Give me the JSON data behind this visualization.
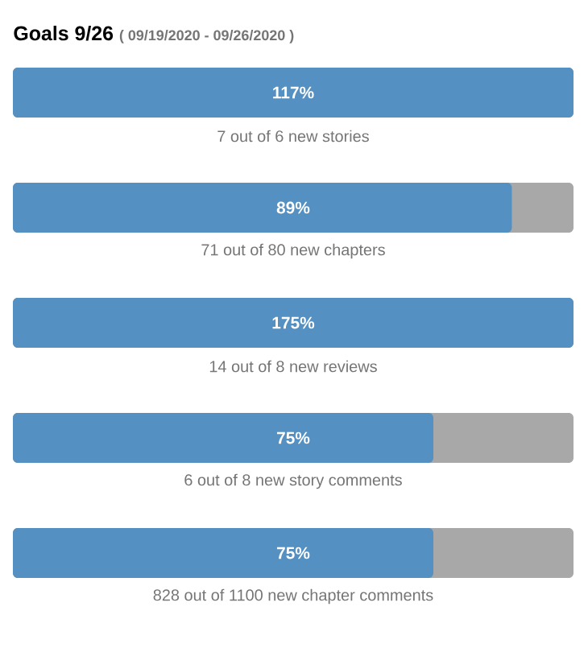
{
  "chart_data": {
    "type": "other",
    "title": "Goals 9/26",
    "subtitle": "( 09/19/2020 - 09/26/2020 )",
    "categories": [
      "7 out of 6 new stories",
      "71 out of 80 new chapters",
      "14 out of 8 new reviews",
      "6 out of 8 new story comments",
      "828 out of 1100 new chapter comments"
    ],
    "values": [
      117,
      89,
      175,
      75,
      75
    ],
    "value_labels": [
      "117%",
      "89%",
      "175%",
      "75%",
      "75%"
    ],
    "color": "#5590c2"
  }
}
